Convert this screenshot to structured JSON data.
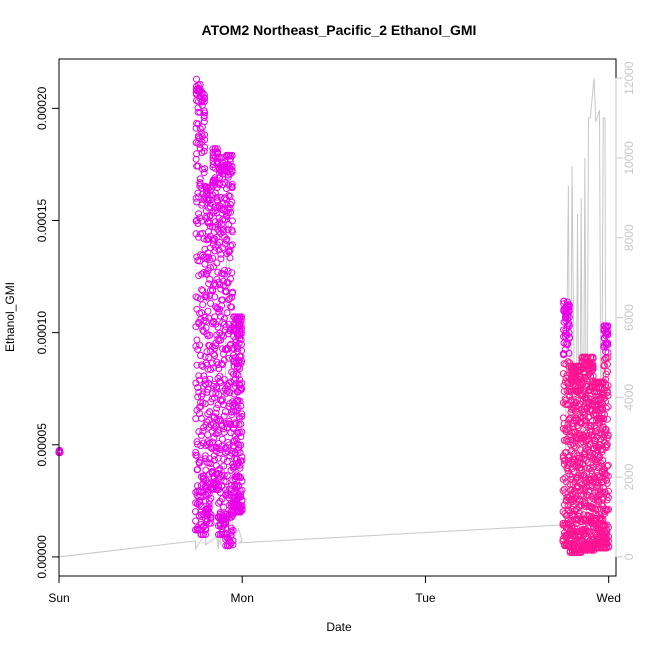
{
  "chart_data": {
    "type": "scatter",
    "title": "ATOM2 Northeast_Pacific_2 Ethanol_GMI",
    "xlabel": "Date",
    "ylabel": "Ethanol_GMI",
    "xlim": [
      0,
      3.04
    ],
    "ylim": [
      -8.5e-06,
      0.000222
    ],
    "y2lim": [
      -480,
      12480
    ],
    "x_ticks": [
      {
        "value": 0,
        "label": "Sun"
      },
      {
        "value": 1,
        "label": "Mon"
      },
      {
        "value": 2,
        "label": "Tue"
      },
      {
        "value": 3,
        "label": "Wed"
      }
    ],
    "y_ticks": [
      {
        "value": 0.0,
        "label": "0.00000"
      },
      {
        "value": 5e-05,
        "label": "0.00005"
      },
      {
        "value": 0.0001,
        "label": "0.00010"
      },
      {
        "value": 0.00015,
        "label": "0.00015"
      },
      {
        "value": 0.0002,
        "label": "0.00020"
      }
    ],
    "y2_ticks": [
      {
        "value": 0,
        "label": "0"
      },
      {
        "value": 2000,
        "label": "2000"
      },
      {
        "value": 4000,
        "label": "4000"
      },
      {
        "value": 6000,
        "label": "6000"
      },
      {
        "value": 8000,
        "label": "8000"
      },
      {
        "value": 10000,
        "label": "10000"
      },
      {
        "value": 12000,
        "label": "12000"
      }
    ],
    "colors": {
      "points_high": "#e800e8",
      "points_low": "#ff1493",
      "altitude_line": "#c8c8c8",
      "axis": "#000000",
      "right_axis": "#c8c8c8"
    },
    "grid": false,
    "legend": "none",
    "secondary_axis": "altitude (right)",
    "series": [
      {
        "style": "points",
        "clusters": [
          {
            "x_start": 0.0,
            "x_end": 0.005,
            "y_min": 4.65e-05,
            "y_max": 4.75e-05
          },
          {
            "x_start": 0.745,
            "x_end": 0.775,
            "y_min": 1.2e-05,
            "y_max": 0.000213
          },
          {
            "x_start": 0.775,
            "x_end": 0.8,
            "y_min": 1e-05,
            "y_max": 0.000207
          },
          {
            "x_start": 0.8,
            "x_end": 0.83,
            "y_min": 1.5e-05,
            "y_max": 0.000165
          },
          {
            "x_start": 0.835,
            "x_end": 0.87,
            "y_min": 3e-05,
            "y_max": 0.000182
          },
          {
            "x_start": 0.87,
            "x_end": 0.91,
            "y_min": 1e-05,
            "y_max": 0.000178
          },
          {
            "x_start": 0.91,
            "x_end": 0.95,
            "y_min": 5e-06,
            "y_max": 0.000179
          },
          {
            "x_start": 0.95,
            "x_end": 1.0,
            "y_min": 2e-05,
            "y_max": 0.000107
          },
          {
            "x_start": 2.75,
            "x_end": 2.79,
            "y_min": 5e-06,
            "y_max": 0.000114
          },
          {
            "x_start": 2.79,
            "x_end": 2.85,
            "y_min": 2e-06,
            "y_max": 8.5e-05
          },
          {
            "x_start": 2.85,
            "x_end": 2.92,
            "y_min": 3e-06,
            "y_max": 8.9e-05
          },
          {
            "x_start": 2.92,
            "x_end": 2.97,
            "y_min": 4e-06,
            "y_max": 7.8e-05
          },
          {
            "x_start": 2.97,
            "x_end": 3.0,
            "y_min": 4e-06,
            "y_max": 0.000103
          }
        ]
      },
      {
        "style": "line",
        "axis": "right",
        "x": [
          0.0,
          0.0,
          0.745,
          0.745,
          0.8,
          0.8,
          0.86,
          0.87,
          0.88,
          0.88,
          0.9,
          0.92,
          0.95,
          0.98,
          1.0,
          0.98,
          2.75,
          2.76,
          2.78,
          2.79,
          2.8,
          2.82,
          2.83,
          2.84,
          2.85,
          2.86,
          2.87,
          2.88,
          2.89,
          2.9,
          2.92,
          2.93,
          2.95,
          2.96,
          2.97,
          2.98,
          2.985,
          2.99,
          2.995,
          3.0
        ],
        "y": [
          400,
          0,
          400,
          200,
          600,
          300,
          500,
          200,
          1500,
          300,
          500,
          10000,
          400,
          700,
          400,
          350,
          800,
          600,
          9300,
          500,
          9800,
          600,
          8600,
          400,
          9000,
          300,
          10000,
          500,
          11000,
          11000,
          12000,
          10900,
          11200,
          500,
          11000,
          11000,
          500,
          600,
          400,
          500
        ]
      }
    ]
  }
}
